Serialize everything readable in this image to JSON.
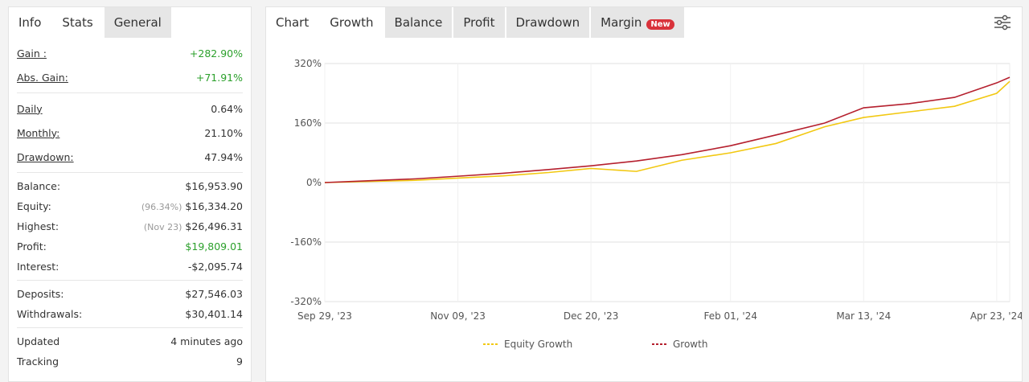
{
  "left_panel": {
    "tabs": [
      "Info",
      "Stats",
      "General"
    ],
    "active_tab": 1,
    "groups": [
      [
        {
          "label": "Gain :",
          "value": "+282.90%",
          "color": "#2ca02c"
        },
        {
          "label": "Abs. Gain:",
          "value": "+71.91%",
          "color": "#2ca02c"
        }
      ],
      [
        {
          "label": "Daily",
          "value": "0.64%"
        },
        {
          "label": "Monthly:",
          "value": "21.10%"
        },
        {
          "label": "Drawdown:",
          "value": "47.94%"
        }
      ],
      [
        {
          "label": "Balance:",
          "value": "$16,953.90"
        },
        {
          "label": "Equity:",
          "note": "(96.34%)",
          "value": "$16,334.20"
        },
        {
          "label": "Highest:",
          "note": "(Nov 23)",
          "value": "$26,496.31"
        },
        {
          "label": "Profit:",
          "value": "$19,809.01",
          "color": "#2ca02c"
        },
        {
          "label": "Interest:",
          "value": "-$2,095.74"
        }
      ],
      [
        {
          "label": "Deposits:",
          "value": "$27,546.03"
        },
        {
          "label": "Withdrawals:",
          "value": "$30,401.14"
        }
      ],
      [
        {
          "label": "Updated",
          "value": "4 minutes ago"
        },
        {
          "label": "Tracking",
          "value": "9"
        }
      ]
    ]
  },
  "right_panel": {
    "title": "Chart",
    "tabs": [
      "Growth",
      "Balance",
      "Profit",
      "Drawdown",
      "Margin"
    ],
    "active_tab": 0,
    "badge": "New"
  },
  "chart_data": {
    "type": "line",
    "x": [
      "2023-09-29",
      "2023-10-13",
      "2023-10-27",
      "2023-11-09",
      "2023-11-23",
      "2023-12-07",
      "2023-12-20",
      "2024-01-03",
      "2024-01-17",
      "2024-02-01",
      "2024-02-15",
      "2024-03-01",
      "2024-03-13",
      "2024-03-27",
      "2024-04-10",
      "2024-04-23",
      "2024-04-27"
    ],
    "series": [
      {
        "name": "Equity Growth",
        "color": "#f2c811",
        "values": [
          0,
          3,
          6,
          12,
          18,
          27,
          38,
          30,
          60,
          80,
          105,
          150,
          175,
          190,
          205,
          240,
          272
        ]
      },
      {
        "name": "Growth",
        "color": "#b5202e",
        "values": [
          0,
          5,
          10,
          17,
          25,
          35,
          45,
          58,
          75,
          99,
          128,
          160,
          201,
          212,
          229,
          268,
          282.9
        ]
      }
    ],
    "xlim": [
      "2023-09-29",
      "2024-04-27"
    ],
    "xticks": [
      {
        "value": "2023-09-29",
        "label": "Sep 29, '23"
      },
      {
        "value": "2023-11-09",
        "label": "Nov 09, '23"
      },
      {
        "value": "2023-12-20",
        "label": "Dec 20, '23"
      },
      {
        "value": "2024-02-01",
        "label": "Feb 01, '24"
      },
      {
        "value": "2024-03-13",
        "label": "Mar 13, '24"
      },
      {
        "value": "2024-04-23",
        "label": "Apr 23, '24"
      }
    ],
    "ylim": [
      -320,
      320
    ],
    "yticks": [
      {
        "value": -320,
        "label": "-320%"
      },
      {
        "value": -160,
        "label": "-160%"
      },
      {
        "value": 0,
        "label": "0%"
      },
      {
        "value": 160,
        "label": "160%"
      },
      {
        "value": 320,
        "label": "320%"
      }
    ],
    "grid": true
  }
}
